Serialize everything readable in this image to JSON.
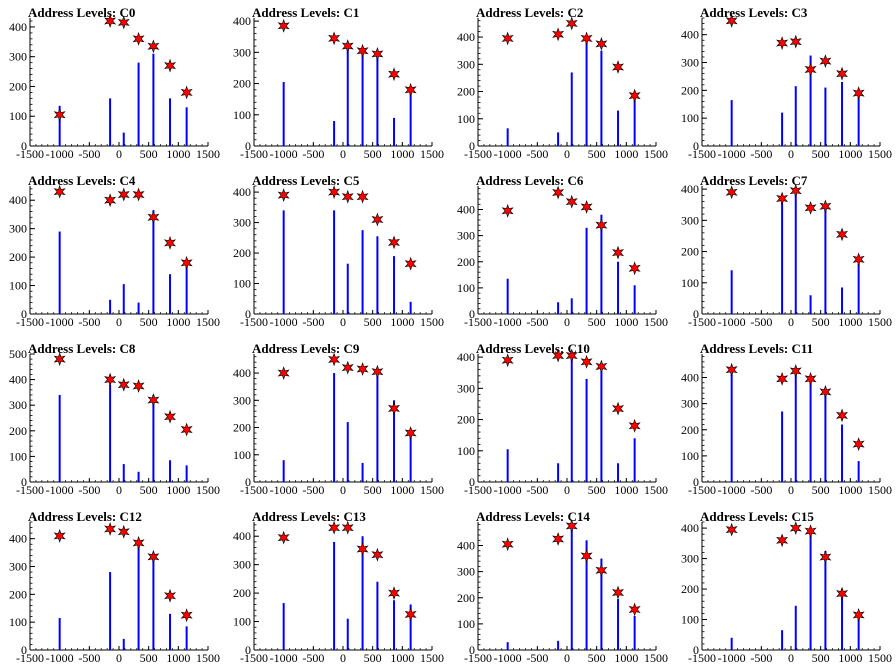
{
  "chart_data": [
    {
      "type": "bar",
      "title": "Address Levels: C0",
      "xlim": [
        -1500,
        1500
      ],
      "ylim": [
        0,
        430
      ],
      "yticks": [
        0,
        100,
        200,
        300,
        400
      ],
      "xticks": [
        -1500,
        -1000,
        -500,
        0,
        500,
        1000,
        1500
      ],
      "series": [
        {
          "x": [
            -1000,
            -150,
            80,
            330,
            580,
            860,
            1140
          ],
          "values": [
            135,
            160,
            45,
            280,
            310,
            160,
            130
          ]
        }
      ],
      "markers": [
        {
          "x": [
            -1000,
            -150,
            80,
            330,
            580,
            860,
            1140
          ],
          "y": [
            105,
            420,
            415,
            360,
            335,
            270,
            180
          ]
        }
      ]
    },
    {
      "type": "bar",
      "title": "Address Levels: C1",
      "xlim": [
        -1500,
        1500
      ],
      "ylim": [
        0,
        410
      ],
      "yticks": [
        0,
        100,
        200,
        300,
        400
      ],
      "xticks": [
        -1500,
        -1000,
        -500,
        0,
        500,
        1000,
        1500
      ],
      "series": [
        {
          "x": [
            -1000,
            -150,
            80,
            330,
            580,
            860,
            1140
          ],
          "values": [
            205,
            80,
            330,
            310,
            290,
            90,
            175
          ]
        }
      ],
      "markers": [
        {
          "x": [
            -1000,
            -150,
            80,
            330,
            580,
            860,
            1140
          ],
          "y": [
            385,
            345,
            320,
            305,
            295,
            230,
            180
          ]
        }
      ]
    },
    {
      "type": "bar",
      "title": "Address Levels: C2",
      "xlim": [
        -1500,
        1500
      ],
      "ylim": [
        0,
        470
      ],
      "yticks": [
        0,
        100,
        200,
        300,
        400
      ],
      "xticks": [
        -1500,
        -1000,
        -500,
        0,
        500,
        1000,
        1500
      ],
      "series": [
        {
          "x": [
            -1000,
            -150,
            80,
            330,
            580,
            860,
            1140
          ],
          "values": [
            65,
            50,
            270,
            390,
            350,
            130,
            170
          ]
        }
      ],
      "markers": [
        {
          "x": [
            -1000,
            -150,
            80,
            330,
            580,
            860,
            1140
          ],
          "y": [
            395,
            410,
            450,
            395,
            375,
            290,
            185
          ]
        }
      ]
    },
    {
      "type": "bar",
      "title": "Address Levels: C3",
      "xlim": [
        -1500,
        1500
      ],
      "ylim": [
        0,
        460
      ],
      "yticks": [
        0,
        100,
        200,
        300,
        400
      ],
      "xticks": [
        -1500,
        -1000,
        -500,
        0,
        500,
        1000,
        1500
      ],
      "series": [
        {
          "x": [
            -1000,
            -150,
            80,
            330,
            580,
            860,
            1140
          ],
          "values": [
            165,
            120,
            215,
            325,
            210,
            230,
            175
          ]
        }
      ],
      "markers": [
        {
          "x": [
            -1000,
            -150,
            80,
            330,
            580,
            860,
            1140
          ],
          "y": [
            450,
            370,
            375,
            275,
            305,
            260,
            190
          ]
        }
      ]
    },
    {
      "type": "bar",
      "title": "Address Levels: C4",
      "xlim": [
        -1500,
        1500
      ],
      "ylim": [
        0,
        450
      ],
      "yticks": [
        0,
        100,
        200,
        300,
        400
      ],
      "xticks": [
        -1500,
        -1000,
        -500,
        0,
        500,
        1000,
        1500
      ],
      "series": [
        {
          "x": [
            -1000,
            -150,
            80,
            330,
            580,
            860,
            1140
          ],
          "values": [
            290,
            50,
            105,
            40,
            365,
            140,
            175
          ]
        }
      ],
      "markers": [
        {
          "x": [
            -1000,
            -150,
            80,
            330,
            580,
            860,
            1140
          ],
          "y": [
            430,
            400,
            420,
            420,
            340,
            250,
            180
          ]
        }
      ]
    },
    {
      "type": "bar",
      "title": "Address Levels: C5",
      "xlim": [
        -1500,
        1500
      ],
      "ylim": [
        0,
        420
      ],
      "yticks": [
        0,
        100,
        200,
        300,
        400
      ],
      "xticks": [
        -1500,
        -1000,
        -500,
        0,
        500,
        1000,
        1500
      ],
      "series": [
        {
          "x": [
            -1000,
            -150,
            80,
            330,
            580,
            860,
            1140
          ],
          "values": [
            340,
            340,
            165,
            275,
            255,
            190,
            40
          ]
        }
      ],
      "markers": [
        {
          "x": [
            -1000,
            -150,
            80,
            330,
            580,
            860,
            1140
          ],
          "y": [
            390,
            400,
            385,
            385,
            310,
            235,
            165
          ]
        }
      ]
    },
    {
      "type": "bar",
      "title": "Address Levels: C6",
      "xlim": [
        -1500,
        1500
      ],
      "ylim": [
        0,
        490
      ],
      "yticks": [
        0,
        100,
        200,
        300,
        400
      ],
      "xticks": [
        -1500,
        -1000,
        -500,
        0,
        500,
        1000,
        1500
      ],
      "series": [
        {
          "x": [
            -1000,
            -150,
            80,
            330,
            580,
            860,
            1140
          ],
          "values": [
            135,
            45,
            60,
            330,
            380,
            200,
            110
          ]
        }
      ],
      "markers": [
        {
          "x": [
            -1000,
            -150,
            80,
            330,
            580,
            860,
            1140
          ],
          "y": [
            395,
            465,
            430,
            410,
            340,
            235,
            175
          ]
        }
      ]
    },
    {
      "type": "bar",
      "title": "Address Levels: C7",
      "xlim": [
        -1500,
        1500
      ],
      "ylim": [
        0,
        410
      ],
      "yticks": [
        0,
        100,
        200,
        300,
        400
      ],
      "xticks": [
        -1500,
        -1000,
        -500,
        0,
        500,
        1000,
        1500
      ],
      "series": [
        {
          "x": [
            -1000,
            -150,
            80,
            330,
            580,
            860,
            1140
          ],
          "values": [
            140,
            370,
            385,
            60,
            350,
            85,
            160
          ]
        }
      ],
      "markers": [
        {
          "x": [
            -1000,
            -150,
            80,
            330,
            580,
            860,
            1140
          ],
          "y": [
            390,
            370,
            395,
            340,
            345,
            255,
            175
          ]
        }
      ]
    },
    {
      "type": "bar",
      "title": "Address Levels: C8",
      "xlim": [
        -1500,
        1500
      ],
      "ylim": [
        0,
        500
      ],
      "yticks": [
        0,
        100,
        200,
        300,
        400,
        500
      ],
      "xticks": [
        -1500,
        -1000,
        -500,
        0,
        500,
        1000,
        1500
      ],
      "series": [
        {
          "x": [
            -1000,
            -150,
            80,
            330,
            580,
            860,
            1140
          ],
          "values": [
            340,
            380,
            70,
            40,
            340,
            85,
            65
          ]
        }
      ],
      "markers": [
        {
          "x": [
            -1000,
            -150,
            80,
            330,
            580,
            860,
            1140
          ],
          "y": [
            480,
            400,
            380,
            375,
            320,
            255,
            205
          ]
        }
      ]
    },
    {
      "type": "bar",
      "title": "Address Levels: C9",
      "xlim": [
        -1500,
        1500
      ],
      "ylim": [
        0,
        470
      ],
      "yticks": [
        0,
        100,
        200,
        300,
        400
      ],
      "xticks": [
        -1500,
        -1000,
        -500,
        0,
        500,
        1000,
        1500
      ],
      "series": [
        {
          "x": [
            -1000,
            -150,
            80,
            330,
            580,
            860,
            1140
          ],
          "values": [
            80,
            400,
            220,
            70,
            400,
            300,
            170
          ]
        }
      ],
      "markers": [
        {
          "x": [
            -1000,
            -150,
            80,
            330,
            580,
            860,
            1140
          ],
          "y": [
            400,
            450,
            420,
            415,
            405,
            270,
            180
          ]
        }
      ]
    },
    {
      "type": "bar",
      "title": "Address Levels: C10",
      "xlim": [
        -1500,
        1500
      ],
      "ylim": [
        0,
        410
      ],
      "yticks": [
        0,
        100,
        200,
        300,
        400
      ],
      "xticks": [
        -1500,
        -1000,
        -500,
        0,
        500,
        1000,
        1500
      ],
      "series": [
        {
          "x": [
            -1000,
            -150,
            80,
            330,
            580,
            860,
            1140
          ],
          "values": [
            105,
            60,
            400,
            330,
            355,
            60,
            140
          ]
        }
      ],
      "markers": [
        {
          "x": [
            -1000,
            -150,
            80,
            330,
            580,
            860,
            1140
          ],
          "y": [
            390,
            405,
            405,
            385,
            370,
            235,
            180
          ]
        }
      ]
    },
    {
      "type": "bar",
      "title": "Address Levels: C11",
      "xlim": [
        -1500,
        1500
      ],
      "ylim": [
        0,
        490
      ],
      "yticks": [
        0,
        100,
        200,
        300,
        400
      ],
      "xticks": [
        -1500,
        -1000,
        -500,
        0,
        500,
        1000,
        1500
      ],
      "series": [
        {
          "x": [
            -1000,
            -150,
            80,
            330,
            580,
            860,
            1140
          ],
          "values": [
            430,
            270,
            420,
            390,
            330,
            220,
            80
          ]
        }
      ],
      "markers": [
        {
          "x": [
            -1000,
            -150,
            80,
            330,
            580,
            860,
            1140
          ],
          "y": [
            430,
            395,
            425,
            395,
            345,
            255,
            145
          ]
        }
      ]
    },
    {
      "type": "bar",
      "title": "Address Levels: C12",
      "xlim": [
        -1500,
        1500
      ],
      "ylim": [
        0,
        460
      ],
      "yticks": [
        0,
        100,
        200,
        300,
        400
      ],
      "xticks": [
        -1500,
        -1000,
        -500,
        0,
        500,
        1000,
        1500
      ],
      "series": [
        {
          "x": [
            -1000,
            -150,
            80,
            330,
            580,
            860,
            1140
          ],
          "values": [
            115,
            280,
            40,
            375,
            320,
            130,
            85
          ]
        }
      ],
      "markers": [
        {
          "x": [
            -1000,
            -150,
            80,
            330,
            580,
            860,
            1140
          ],
          "y": [
            410,
            435,
            425,
            385,
            335,
            195,
            125
          ]
        }
      ]
    },
    {
      "type": "bar",
      "title": "Address Levels: C13",
      "xlim": [
        -1500,
        1500
      ],
      "ylim": [
        0,
        450
      ],
      "yticks": [
        0,
        100,
        200,
        300,
        400
      ],
      "xticks": [
        -1500,
        -1000,
        -500,
        0,
        500,
        1000,
        1500
      ],
      "series": [
        {
          "x": [
            -1000,
            -150,
            80,
            330,
            580,
            860,
            1140
          ],
          "values": [
            165,
            380,
            110,
            400,
            240,
            175,
            160
          ]
        }
      ],
      "markers": [
        {
          "x": [
            -1000,
            -150,
            80,
            330,
            580,
            860,
            1140
          ],
          "y": [
            395,
            430,
            430,
            355,
            335,
            200,
            125
          ]
        }
      ]
    },
    {
      "type": "bar",
      "title": "Address Levels: C14",
      "xlim": [
        -1500,
        1500
      ],
      "ylim": [
        0,
        490
      ],
      "yticks": [
        0,
        100,
        200,
        300,
        400
      ],
      "xticks": [
        -1500,
        -1000,
        -500,
        0,
        500,
        1000,
        1500
      ],
      "series": [
        {
          "x": [
            -1000,
            -150,
            80,
            330,
            580,
            860,
            1140
          ],
          "values": [
            30,
            35,
            460,
            420,
            350,
            195,
            130
          ]
        }
      ],
      "markers": [
        {
          "x": [
            -1000,
            -150,
            80,
            330,
            580,
            860,
            1140
          ],
          "y": [
            405,
            425,
            475,
            360,
            305,
            220,
            155
          ]
        }
      ]
    },
    {
      "type": "bar",
      "title": "Address Levels: C15",
      "xlim": [
        -1500,
        1500
      ],
      "ylim": [
        0,
        420
      ],
      "yticks": [
        0,
        100,
        200,
        300,
        400
      ],
      "xticks": [
        -1500,
        -1000,
        -500,
        0,
        500,
        1000,
        1500
      ],
      "series": [
        {
          "x": [
            -1000,
            -150,
            80,
            330,
            580,
            860,
            1140
          ],
          "values": [
            40,
            65,
            145,
            390,
            325,
            200,
            125
          ]
        }
      ],
      "markers": [
        {
          "x": [
            -1000,
            -150,
            80,
            330,
            580,
            860,
            1140
          ],
          "y": [
            395,
            360,
            400,
            390,
            305,
            185,
            115
          ]
        }
      ]
    }
  ],
  "colors": {
    "bars": "#0000ff",
    "markers": "#ff0000",
    "marker_outline": "#000000",
    "axes": "#000000"
  }
}
